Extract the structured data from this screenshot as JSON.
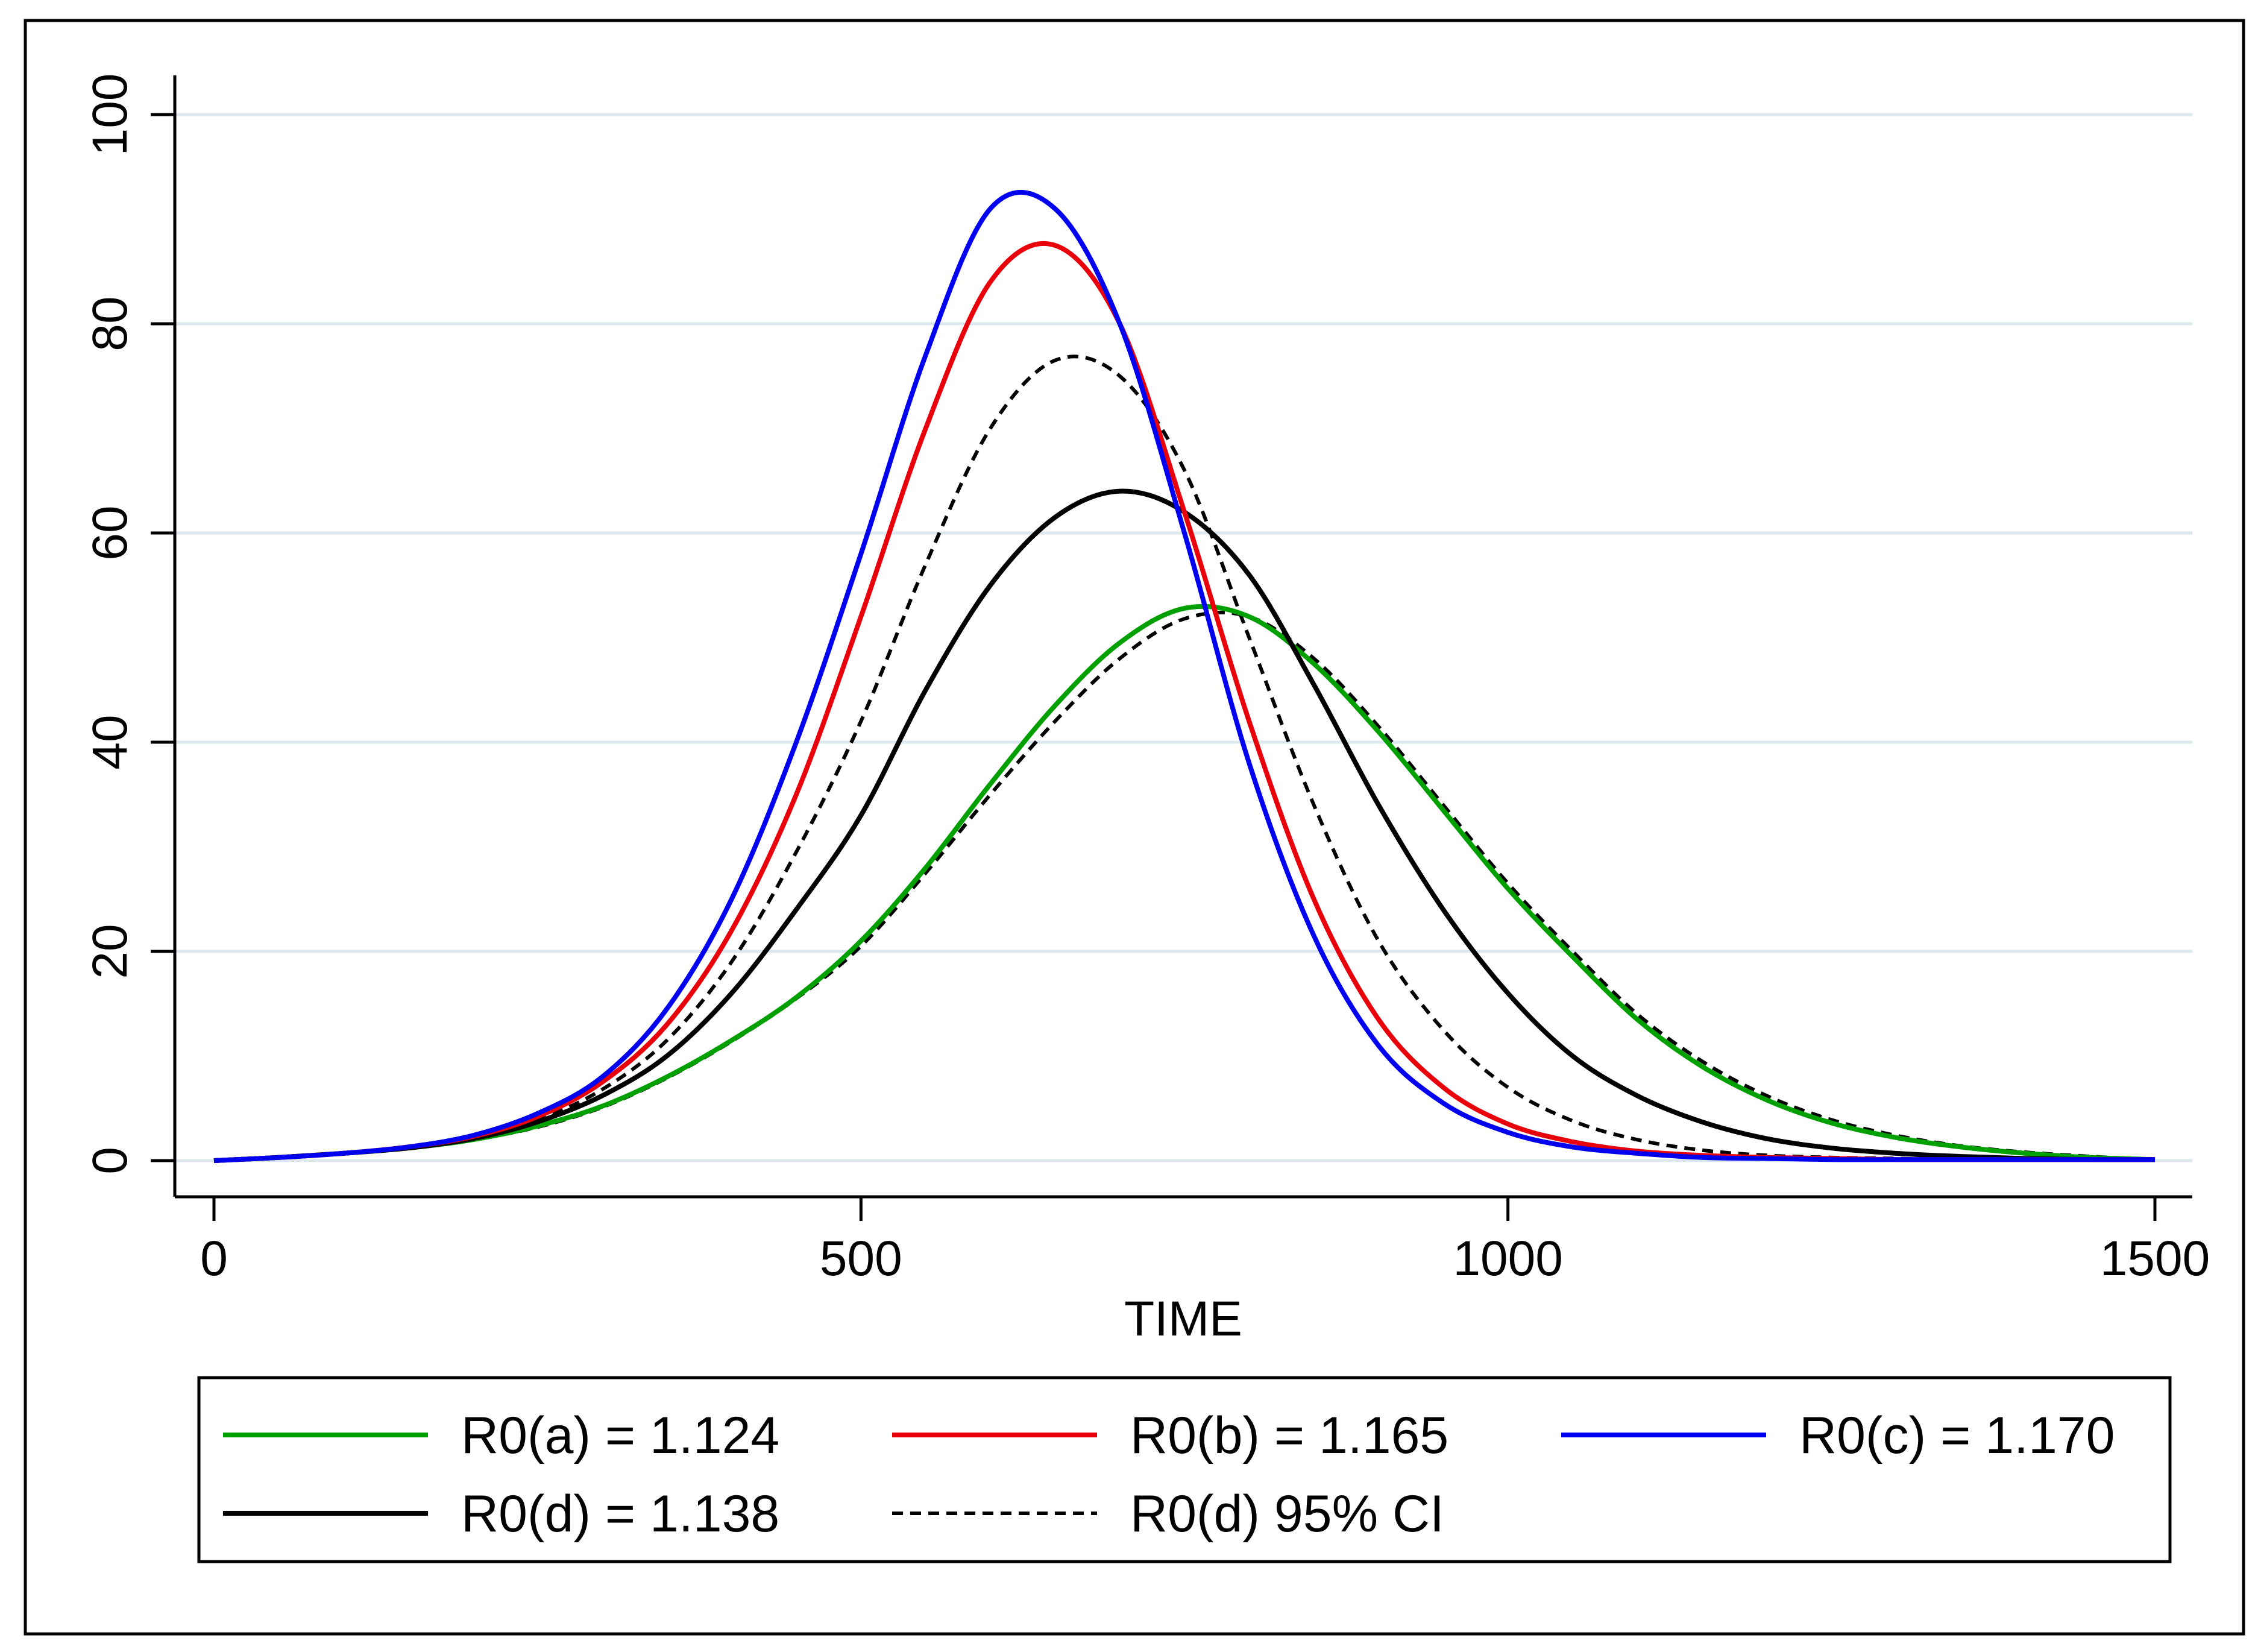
{
  "chart_data": {
    "type": "line",
    "title": "",
    "xlabel": "TIME",
    "ylabel": "",
    "xlim": [
      0,
      1500
    ],
    "ylim": [
      0,
      100
    ],
    "xticks": [
      0,
      500,
      1000,
      1500
    ],
    "yticks": [
      0,
      20,
      40,
      60,
      80,
      100
    ],
    "xtick_labels": [
      "0",
      "500",
      "1000",
      "1500"
    ],
    "ytick_labels": [
      "0",
      "20",
      "40",
      "60",
      "80",
      "100"
    ],
    "grid": "horizontal",
    "legend_position": "bottom",
    "x": [
      0,
      50,
      100,
      150,
      200,
      250,
      300,
      350,
      400,
      450,
      500,
      550,
      600,
      650,
      700,
      750,
      800,
      850,
      900,
      950,
      1000,
      1050,
      1100,
      1150,
      1200,
      1250,
      1300,
      1350,
      1400,
      1450,
      1500
    ],
    "series": [
      {
        "name": "R0(a) = 1.124",
        "color": "#00a000",
        "dash": "solid",
        "values": [
          0,
          0.3,
          0.7,
          1.2,
          2.0,
          3.3,
          5.2,
          8.0,
          11.5,
          15.6,
          21.0,
          28.0,
          36.0,
          43.5,
          49.5,
          52.8,
          52.0,
          47.5,
          41.0,
          33.5,
          26.0,
          19.5,
          13.5,
          9.0,
          5.8,
          3.6,
          2.2,
          1.3,
          0.7,
          0.3,
          0.1
        ]
      },
      {
        "name": "R0(b) = 1.165",
        "color": "#e8000b",
        "dash": "solid",
        "values": [
          0,
          0.3,
          0.7,
          1.3,
          2.3,
          4.2,
          7.5,
          13.0,
          22.0,
          35.0,
          52.0,
          70.0,
          84.0,
          87.5,
          80.0,
          62.0,
          42.0,
          25.0,
          13.5,
          7.0,
          3.5,
          1.8,
          0.9,
          0.5,
          0.3,
          0.2,
          0.1,
          0.1,
          0.1,
          0.1,
          0.1
        ]
      },
      {
        "name": "R0(c) = 1.170",
        "color": "#0000f0",
        "dash": "solid",
        "values": [
          0,
          0.3,
          0.7,
          1.3,
          2.4,
          4.5,
          8.0,
          14.5,
          25.0,
          40.0,
          58.0,
          77.0,
          91.0,
          91.0,
          80.0,
          60.0,
          38.0,
          21.5,
          11.0,
          5.5,
          2.7,
          1.3,
          0.7,
          0.3,
          0.2,
          0.1,
          0.1,
          0.1,
          0.1,
          0.1,
          0.1
        ]
      },
      {
        "name": "R0(d) = 1.138",
        "color": "#000000",
        "dash": "solid",
        "values": [
          0,
          0.3,
          0.7,
          1.2,
          2.1,
          3.7,
          6.2,
          10.0,
          16.0,
          24.0,
          33.0,
          45.0,
          55.0,
          61.5,
          64.0,
          62.0,
          56.0,
          45.5,
          34.0,
          24.0,
          16.0,
          10.0,
          6.2,
          3.7,
          2.1,
          1.2,
          0.7,
          0.4,
          0.2,
          0.1,
          0.1
        ]
      },
      {
        "name": "R0(d) 95% CI",
        "color": "#000000",
        "dash": "dashed",
        "values": [
          0,
          0.3,
          0.7,
          1.3,
          2.2,
          3.9,
          6.8,
          11.5,
          19.0,
          29.5,
          42.0,
          57.0,
          70.0,
          76.5,
          75.0,
          66.0,
          50.0,
          34.0,
          21.0,
          12.5,
          7.0,
          3.8,
          2.0,
          1.0,
          0.5,
          0.3,
          0.2,
          0.1,
          0.1,
          0.1,
          0.1
        ],
        "legend": true
      },
      {
        "name": "R0(d) 95% CI (lower)",
        "color": "#000000",
        "dash": "dashed",
        "values": [
          0,
          0.3,
          0.7,
          1.2,
          2.0,
          3.2,
          5.1,
          7.9,
          11.4,
          15.5,
          20.5,
          27.5,
          35.0,
          42.0,
          48.0,
          51.8,
          52.0,
          48.0,
          41.5,
          34.0,
          26.5,
          20.0,
          14.0,
          9.5,
          6.2,
          3.9,
          2.4,
          1.4,
          0.8,
          0.4,
          0.1
        ],
        "legend": false
      }
    ],
    "legend": [
      {
        "label": "R0(a) = 1.124",
        "color": "#00a000",
        "dash": "solid"
      },
      {
        "label": "R0(b) = 1.165",
        "color": "#e8000b",
        "dash": "solid"
      },
      {
        "label": "R0(c) = 1.170",
        "color": "#0000f0",
        "dash": "solid"
      },
      {
        "label": "R0(d) = 1.138",
        "color": "#000000",
        "dash": "solid"
      },
      {
        "label": "R0(d) 95% CI",
        "color": "#000000",
        "dash": "dashed"
      }
    ]
  }
}
